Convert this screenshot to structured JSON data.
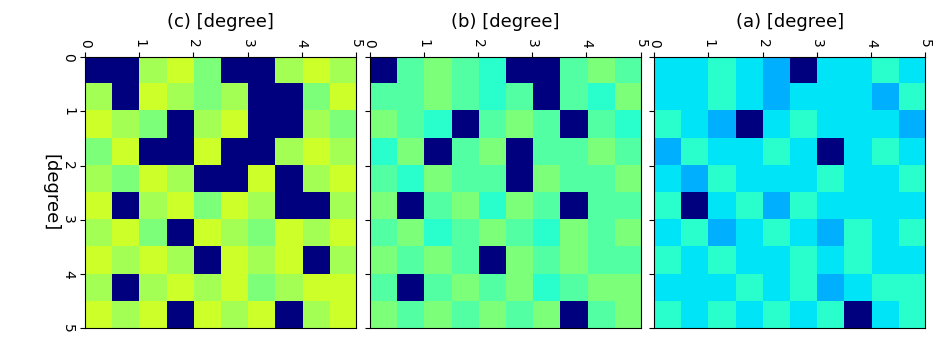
{
  "chart_data": [
    {
      "type": "heatmap",
      "title": "(c) [degree]",
      "y_label": "[degree]",
      "xlim": [
        0,
        5
      ],
      "xticks": [
        0,
        1,
        2,
        3,
        4,
        5
      ],
      "ylim": [
        5,
        0
      ],
      "yticks": [
        0,
        1,
        2,
        3,
        4,
        5
      ],
      "color_range": [
        0,
        1
      ],
      "color": "jet",
      "cells": [
        [
          0,
          0,
          0.55,
          0.6,
          0.5,
          0,
          0,
          0.55,
          0.6,
          0.55
        ],
        [
          0.55,
          0,
          0.6,
          0.55,
          0.5,
          0.55,
          0,
          0,
          0.5,
          0.6
        ],
        [
          0.6,
          0.55,
          0.5,
          0,
          0.55,
          0.6,
          0,
          0,
          0.55,
          0.5
        ],
        [
          0.5,
          0.6,
          0,
          0,
          0.6,
          0,
          0,
          0.55,
          0.6,
          0.55
        ],
        [
          0.55,
          0.5,
          0.6,
          0.55,
          0,
          0,
          0.6,
          0,
          0.55,
          0.6
        ],
        [
          0.6,
          0,
          0.55,
          0.6,
          0.5,
          0.6,
          0.55,
          0,
          0,
          0.55
        ],
        [
          0.55,
          0.6,
          0.5,
          0,
          0.6,
          0.55,
          0.5,
          0.6,
          0.55,
          0.6
        ],
        [
          0.6,
          0.55,
          0.6,
          0.55,
          0,
          0.6,
          0.55,
          0.6,
          0,
          0.55
        ],
        [
          0.55,
          0,
          0.55,
          0.6,
          0.55,
          0.6,
          0.5,
          0.55,
          0.6,
          0.6
        ],
        [
          0.6,
          0.55,
          0.6,
          0,
          0.6,
          0.55,
          0.6,
          0,
          0.55,
          0.6
        ]
      ]
    },
    {
      "type": "heatmap",
      "title": "(b) [degree]",
      "tick_labels": "x",
      "xlim": [
        0,
        5
      ],
      "xticks": [
        0,
        1,
        2,
        3,
        4,
        5
      ],
      "ylim": [
        5,
        0
      ],
      "yticks": [
        0,
        1,
        2,
        3,
        4,
        5
      ],
      "color_range": [
        0,
        1
      ],
      "color": "jet",
      "cells": [
        [
          0,
          0.45,
          0.5,
          0.45,
          0.4,
          0,
          0,
          0.45,
          0.5,
          0.45
        ],
        [
          0.45,
          0.45,
          0.5,
          0.45,
          0.4,
          0.45,
          0,
          0.45,
          0.4,
          0.5
        ],
        [
          0.5,
          0.45,
          0.4,
          0,
          0.45,
          0.5,
          0.45,
          0,
          0.45,
          0.4
        ],
        [
          0.4,
          0.5,
          0,
          0.45,
          0.5,
          0,
          0.45,
          0.45,
          0.5,
          0.45
        ],
        [
          0.45,
          0.4,
          0.5,
          0.45,
          0.45,
          0,
          0.5,
          0.45,
          0.45,
          0.5
        ],
        [
          0.5,
          0,
          0.45,
          0.5,
          0.4,
          0.5,
          0.45,
          0,
          0.45,
          0.45
        ],
        [
          0.45,
          0.5,
          0.4,
          0.45,
          0.5,
          0.45,
          0.4,
          0.5,
          0.45,
          0.5
        ],
        [
          0.5,
          0.45,
          0.5,
          0.45,
          0,
          0.5,
          0.45,
          0.5,
          0.45,
          0.45
        ],
        [
          0.45,
          0,
          0.45,
          0.5,
          0.45,
          0.5,
          0.4,
          0.45,
          0.5,
          0.5
        ],
        [
          0.5,
          0.45,
          0.5,
          0.45,
          0.5,
          0.45,
          0.5,
          0,
          0.45,
          0.5
        ]
      ]
    },
    {
      "type": "heatmap",
      "title": "(a) [degree]",
      "tick_labels": "x",
      "xlim": [
        0,
        5
      ],
      "xticks": [
        0,
        1,
        2,
        3,
        4,
        5
      ],
      "ylim": [
        5,
        0
      ],
      "yticks": [
        0,
        1,
        2,
        3,
        4,
        5
      ],
      "color_range": [
        0,
        1
      ],
      "color": "jet",
      "cells": [
        [
          0.35,
          0.35,
          0.4,
          0.35,
          0.3,
          0,
          0.35,
          0.35,
          0.4,
          0.35
        ],
        [
          0.35,
          0.35,
          0.4,
          0.35,
          0.3,
          0.35,
          0.35,
          0.35,
          0.3,
          0.4
        ],
        [
          0.4,
          0.35,
          0.3,
          0,
          0.35,
          0.4,
          0.35,
          0.35,
          0.35,
          0.3
        ],
        [
          0.3,
          0.4,
          0.35,
          0.35,
          0.4,
          0.35,
          0,
          0.35,
          0.4,
          0.35
        ],
        [
          0.35,
          0.3,
          0.4,
          0.35,
          0.35,
          0.35,
          0.4,
          0.35,
          0.35,
          0.4
        ],
        [
          0.4,
          0,
          0.35,
          0.4,
          0.3,
          0.4,
          0.35,
          0.35,
          0.35,
          0.35
        ],
        [
          0.35,
          0.4,
          0.3,
          0.35,
          0.4,
          0.35,
          0.3,
          0.4,
          0.35,
          0.4
        ],
        [
          0.4,
          0.35,
          0.4,
          0.35,
          0.35,
          0.4,
          0.35,
          0.4,
          0.35,
          0.35
        ],
        [
          0.35,
          0.35,
          0.35,
          0.4,
          0.35,
          0.4,
          0.3,
          0.35,
          0.4,
          0.4
        ],
        [
          0.4,
          0.35,
          0.4,
          0.35,
          0.4,
          0.35,
          0.4,
          0,
          0.35,
          0.4
        ]
      ]
    }
  ]
}
